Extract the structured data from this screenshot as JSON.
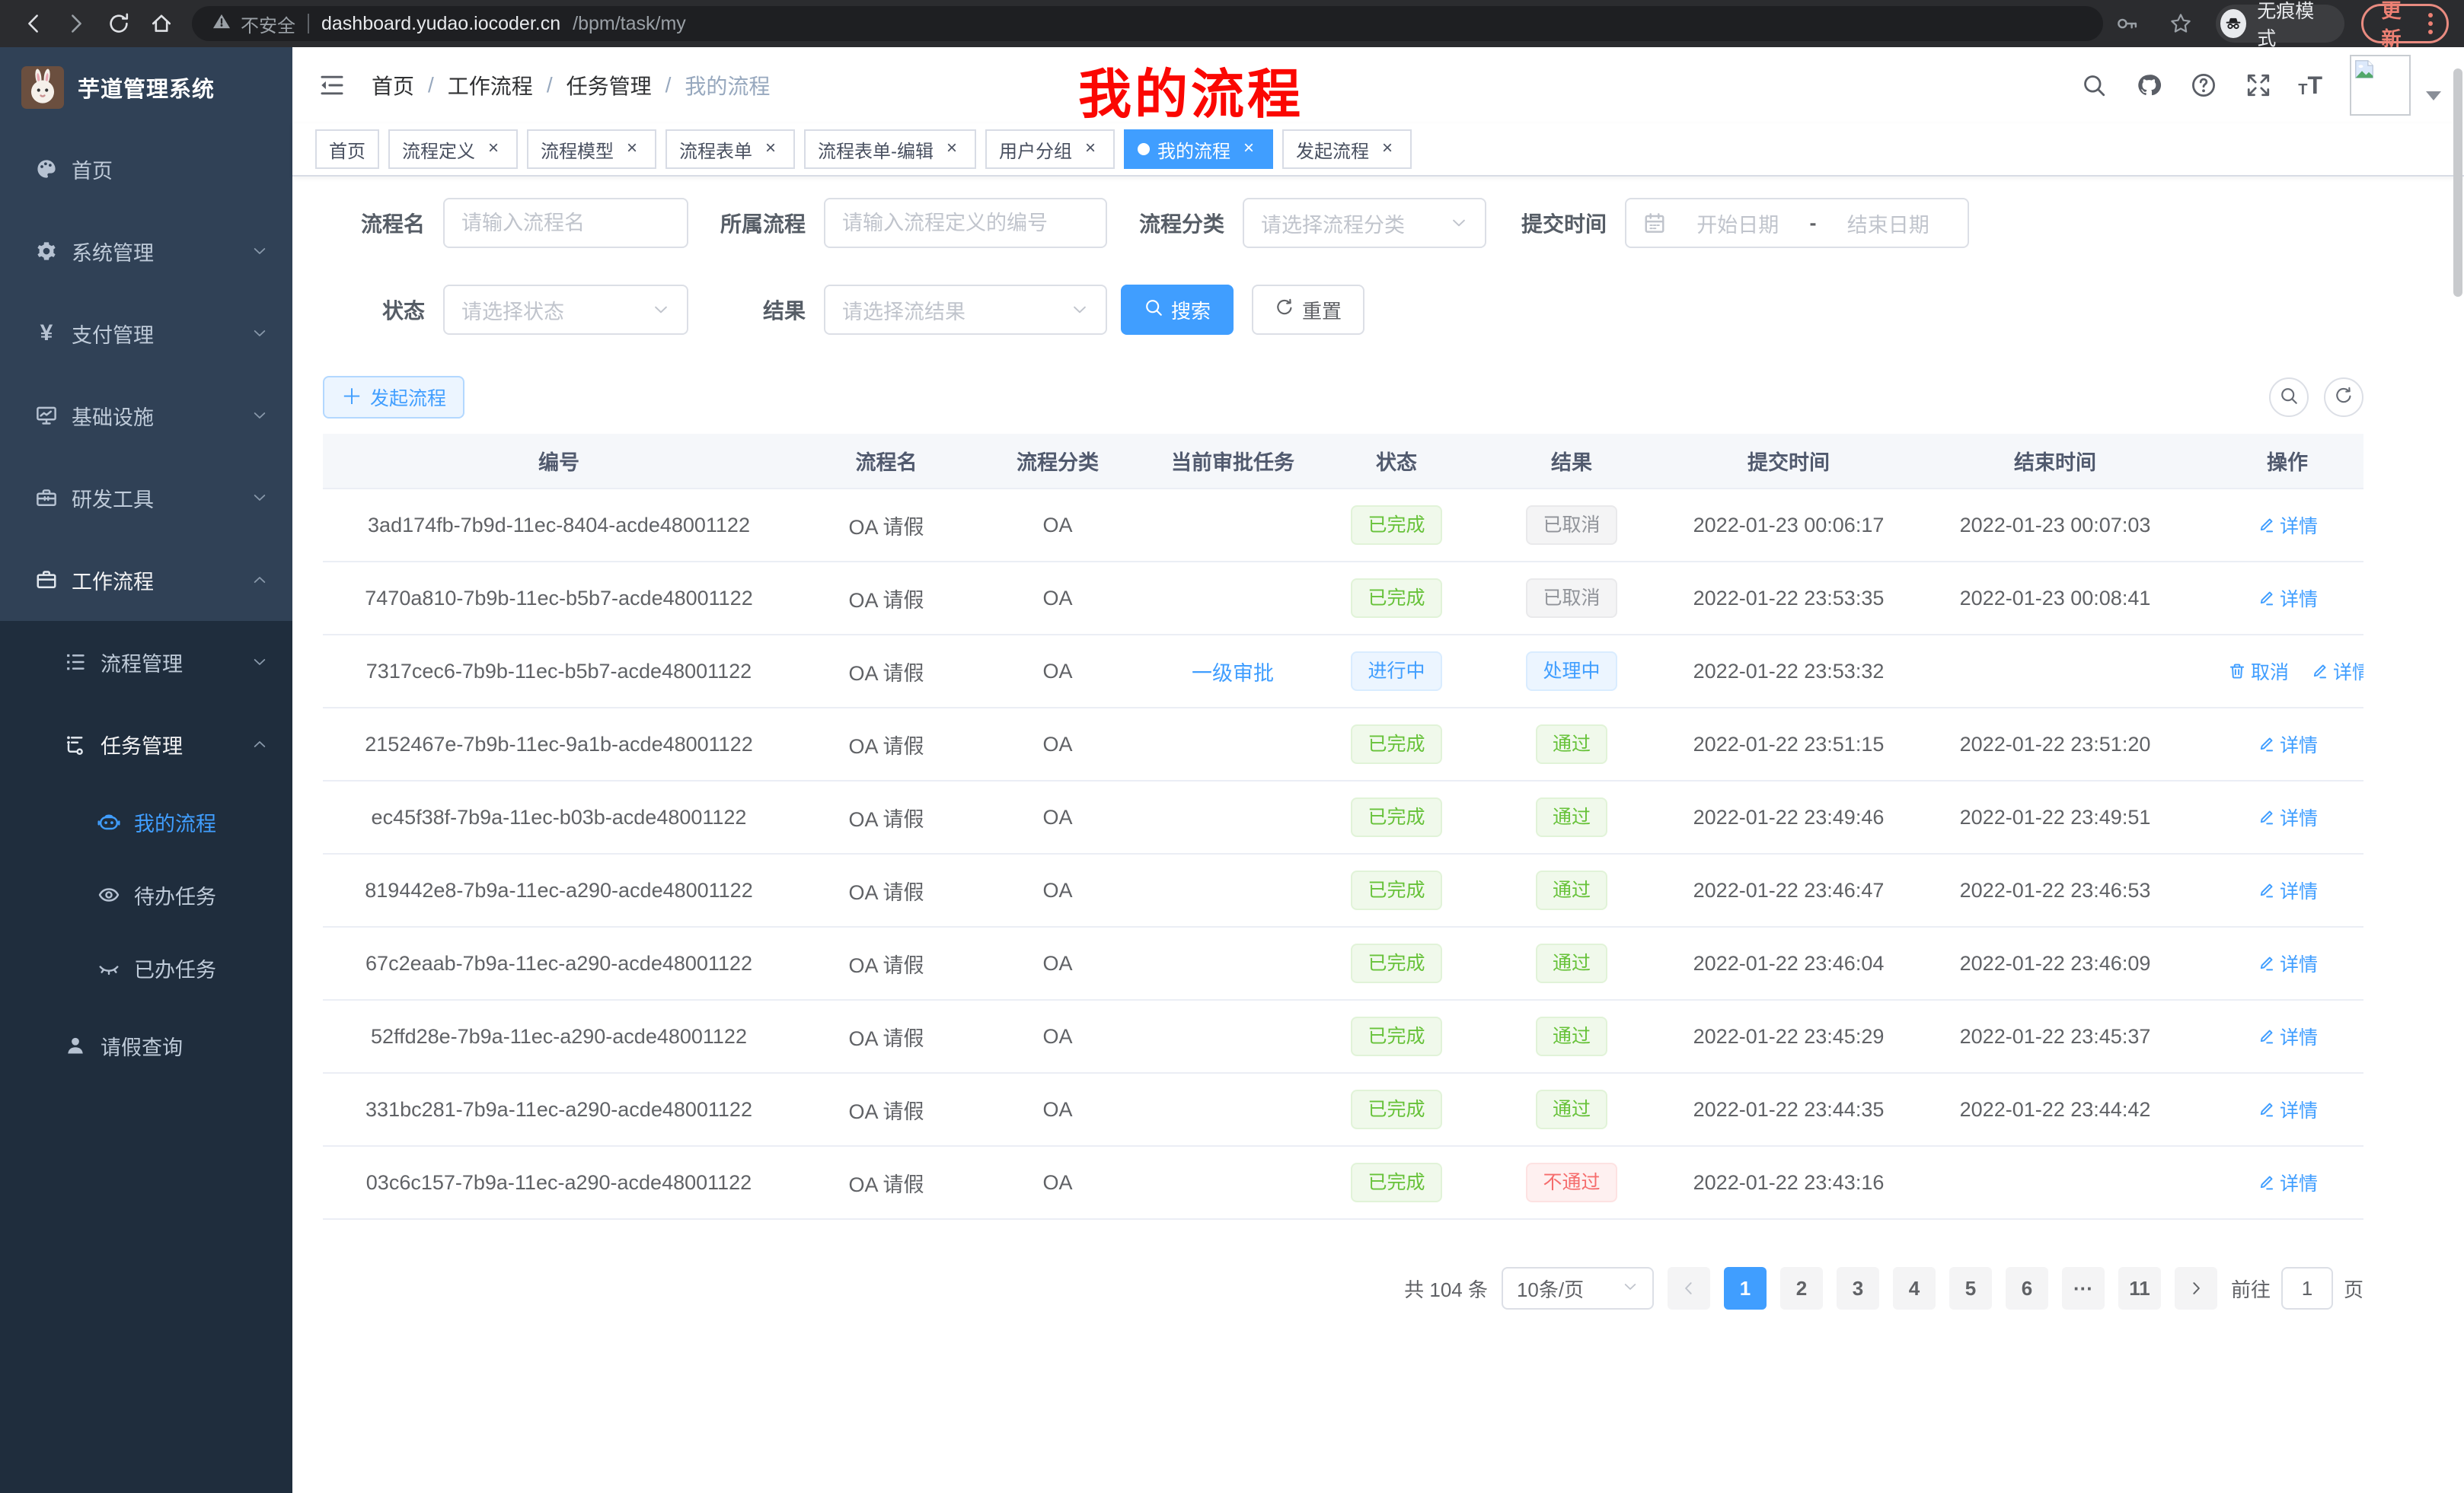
{
  "colors": {
    "accent": "#409eff",
    "success": "#67c23a",
    "info": "#909399",
    "danger": "#f56c6c",
    "sidebar_bg": "#304156",
    "submenu_bg": "#1f2d3d",
    "annotation_red": "#fb0702",
    "update_red": "#ed8073"
  },
  "browser": {
    "security_label": "不安全",
    "url_host": "dashboard.yudao.iocoder.cn",
    "url_path": "/bpm/task/my",
    "incognito_label": "无痕模式",
    "update_label": "更新"
  },
  "sidebar": {
    "title": "芋道管理系统",
    "menu": [
      {
        "label": "首页",
        "icon": "dashboard-icon",
        "level": 1,
        "section": "main"
      },
      {
        "label": "系统管理",
        "icon": "gear-icon",
        "level": 1,
        "section": "main",
        "chevron": "down"
      },
      {
        "label": "支付管理",
        "icon": "yen-icon",
        "level": 1,
        "section": "main",
        "chevron": "down"
      },
      {
        "label": "基础设施",
        "icon": "monitor-icon",
        "level": 1,
        "section": "main",
        "chevron": "down"
      },
      {
        "label": "研发工具",
        "icon": "toolbox-icon",
        "level": 1,
        "section": "main",
        "chevron": "down"
      },
      {
        "label": "工作流程",
        "icon": "briefcase-icon",
        "level": 1,
        "section": "main",
        "chevron": "up",
        "open": true
      },
      {
        "label": "流程管理",
        "icon": "list-icon",
        "level": 2,
        "section": "sub",
        "chevron": "down"
      },
      {
        "label": "任务管理",
        "icon": "flow-icon",
        "level": 2,
        "section": "sub",
        "chevron": "up",
        "open": true
      },
      {
        "label": "我的流程",
        "icon": "robot-icon",
        "level": 3,
        "section": "sub",
        "active": true
      },
      {
        "label": "待办任务",
        "icon": "eye-open-icon",
        "level": 3,
        "section": "sub"
      },
      {
        "label": "已办任务",
        "icon": "eye-closed-icon",
        "level": 3,
        "section": "sub"
      },
      {
        "label": "请假查询",
        "icon": "user-icon",
        "level": 2,
        "section": "sub"
      }
    ]
  },
  "header": {
    "breadcrumb": [
      "首页",
      "工作流程",
      "任务管理",
      "我的流程"
    ],
    "annotation": "我的流程"
  },
  "tabs": [
    {
      "label": "首页",
      "closable": false
    },
    {
      "label": "流程定义",
      "closable": true
    },
    {
      "label": "流程模型",
      "closable": true
    },
    {
      "label": "流程表单",
      "closable": true
    },
    {
      "label": "流程表单-编辑",
      "closable": true
    },
    {
      "label": "用户分组",
      "closable": true
    },
    {
      "label": "我的流程",
      "closable": true,
      "active": true
    },
    {
      "label": "发起流程",
      "closable": true
    }
  ],
  "filters": {
    "process_name": {
      "label": "流程名",
      "placeholder": "请输入流程名"
    },
    "process_def": {
      "label": "所属流程",
      "placeholder": "请输入流程定义的编号"
    },
    "category": {
      "label": "流程分类",
      "placeholder": "请选择流程分类"
    },
    "submit_time": {
      "label": "提交时间",
      "start_placeholder": "开始日期",
      "separator": "-",
      "end_placeholder": "结束日期"
    },
    "status": {
      "label": "状态",
      "placeholder": "请选择状态"
    },
    "result": {
      "label": "结果",
      "placeholder": "请选择流结果"
    },
    "search_label": "搜索",
    "reset_label": "重置"
  },
  "toolbar": {
    "create_label": "发起流程"
  },
  "table": {
    "columns": [
      "编号",
      "流程名",
      "流程分类",
      "当前审批任务",
      "状态",
      "结果",
      "提交时间",
      "结束时间",
      "操作"
    ],
    "rows": [
      {
        "id": "3ad174fb-7b9d-11ec-8404-acde48001122",
        "name": "OA 请假",
        "category": "OA",
        "task": "",
        "status": "已完成",
        "status_type": "success",
        "result": "已取消",
        "result_type": "info",
        "submit": "2022-01-23 00:06:17",
        "end": "2022-01-23 00:07:03",
        "actions": [
          {
            "label": "详情",
            "icon": "edit-icon"
          }
        ]
      },
      {
        "id": "7470a810-7b9b-11ec-b5b7-acde48001122",
        "name": "OA 请假",
        "category": "OA",
        "task": "",
        "status": "已完成",
        "status_type": "success",
        "result": "已取消",
        "result_type": "info",
        "submit": "2022-01-22 23:53:35",
        "end": "2022-01-23 00:08:41",
        "actions": [
          {
            "label": "详情",
            "icon": "edit-icon"
          }
        ]
      },
      {
        "id": "7317cec6-7b9b-11ec-b5b7-acde48001122",
        "name": "OA 请假",
        "category": "OA",
        "task": "一级审批",
        "status": "进行中",
        "status_type": "primary",
        "result": "处理中",
        "result_type": "primary",
        "submit": "2022-01-22 23:53:32",
        "end": "",
        "actions": [
          {
            "label": "取消",
            "icon": "trash-icon"
          },
          {
            "label": "详情",
            "icon": "edit-icon"
          }
        ]
      },
      {
        "id": "2152467e-7b9b-11ec-9a1b-acde48001122",
        "name": "OA 请假",
        "category": "OA",
        "task": "",
        "status": "已完成",
        "status_type": "success",
        "result": "通过",
        "result_type": "success",
        "submit": "2022-01-22 23:51:15",
        "end": "2022-01-22 23:51:20",
        "actions": [
          {
            "label": "详情",
            "icon": "edit-icon"
          }
        ]
      },
      {
        "id": "ec45f38f-7b9a-11ec-b03b-acde48001122",
        "name": "OA 请假",
        "category": "OA",
        "task": "",
        "status": "已完成",
        "status_type": "success",
        "result": "通过",
        "result_type": "success",
        "submit": "2022-01-22 23:49:46",
        "end": "2022-01-22 23:49:51",
        "actions": [
          {
            "label": "详情",
            "icon": "edit-icon"
          }
        ]
      },
      {
        "id": "819442e8-7b9a-11ec-a290-acde48001122",
        "name": "OA 请假",
        "category": "OA",
        "task": "",
        "status": "已完成",
        "status_type": "success",
        "result": "通过",
        "result_type": "success",
        "submit": "2022-01-22 23:46:47",
        "end": "2022-01-22 23:46:53",
        "actions": [
          {
            "label": "详情",
            "icon": "edit-icon"
          }
        ]
      },
      {
        "id": "67c2eaab-7b9a-11ec-a290-acde48001122",
        "name": "OA 请假",
        "category": "OA",
        "task": "",
        "status": "已完成",
        "status_type": "success",
        "result": "通过",
        "result_type": "success",
        "submit": "2022-01-22 23:46:04",
        "end": "2022-01-22 23:46:09",
        "actions": [
          {
            "label": "详情",
            "icon": "edit-icon"
          }
        ]
      },
      {
        "id": "52ffd28e-7b9a-11ec-a290-acde48001122",
        "name": "OA 请假",
        "category": "OA",
        "task": "",
        "status": "已完成",
        "status_type": "success",
        "result": "通过",
        "result_type": "success",
        "submit": "2022-01-22 23:45:29",
        "end": "2022-01-22 23:45:37",
        "actions": [
          {
            "label": "详情",
            "icon": "edit-icon"
          }
        ]
      },
      {
        "id": "331bc281-7b9a-11ec-a290-acde48001122",
        "name": "OA 请假",
        "category": "OA",
        "task": "",
        "status": "已完成",
        "status_type": "success",
        "result": "通过",
        "result_type": "success",
        "submit": "2022-01-22 23:44:35",
        "end": "2022-01-22 23:44:42",
        "actions": [
          {
            "label": "详情",
            "icon": "edit-icon"
          }
        ]
      },
      {
        "id": "03c6c157-7b9a-11ec-a290-acde48001122",
        "name": "OA 请假",
        "category": "OA",
        "task": "",
        "status": "已完成",
        "status_type": "success",
        "result": "不通过",
        "result_type": "danger",
        "submit": "2022-01-22 23:43:16",
        "end": "",
        "actions": [
          {
            "label": "详情",
            "icon": "edit-icon"
          }
        ]
      }
    ]
  },
  "pagination": {
    "total_label": "共 104 条",
    "page_size": "10条/页",
    "pages": [
      {
        "label": "1",
        "active": true
      },
      {
        "label": "2"
      },
      {
        "label": "3"
      },
      {
        "label": "4"
      },
      {
        "label": "5"
      },
      {
        "label": "6"
      },
      {
        "label": "···",
        "ellipsis": true
      },
      {
        "label": "11"
      }
    ],
    "goto_label": "前往",
    "goto_value": "1",
    "page_label": "页"
  }
}
